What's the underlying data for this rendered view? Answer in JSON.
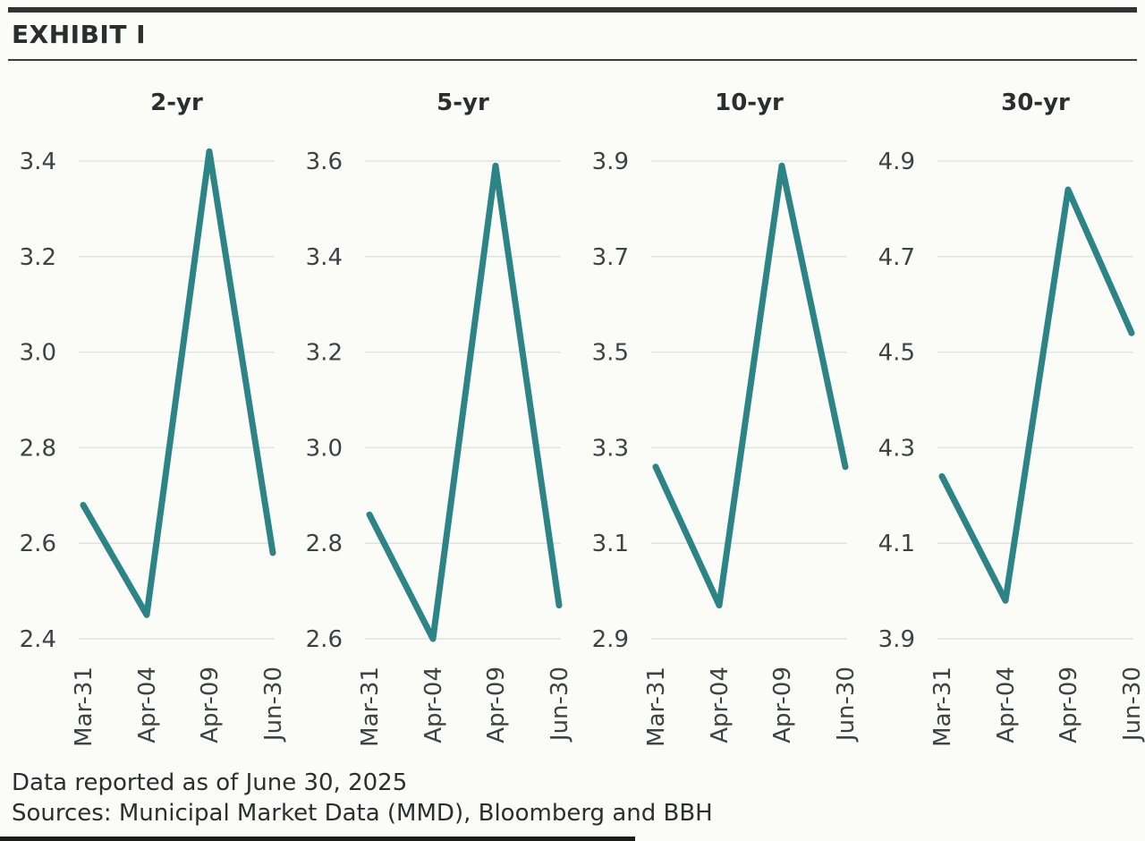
{
  "exhibit": {
    "title": "EXHIBIT I"
  },
  "footer": {
    "as_of": "Data reported as of June 30, 2025",
    "sources": "Sources: Municipal Market Data (MMD), Bloomberg and BBH"
  },
  "colors": {
    "line": "#2d8486",
    "grid": "#e2e2e0",
    "background": "#fbfbf8",
    "rule_dark": "#303234",
    "tick_text": "#3f4245"
  },
  "chart_data": {
    "type": "line",
    "title": "EXHIBIT I",
    "grid": true,
    "legend_position": "none",
    "x_tick_rotation": 90,
    "categories": [
      "Mar-31",
      "Apr-04",
      "Apr-09",
      "Jun-30"
    ],
    "panels": [
      {
        "title": "2-yr",
        "ylim": [
          2.4,
          3.4
        ],
        "yticks": [
          "3.4",
          "3.2",
          "3.0",
          "2.8",
          "2.6",
          "2.4"
        ],
        "values": [
          2.68,
          2.45,
          3.42,
          2.58
        ]
      },
      {
        "title": "5-yr",
        "ylim": [
          2.6,
          3.6
        ],
        "yticks": [
          "3.6",
          "3.4",
          "3.2",
          "3.0",
          "2.8",
          "2.6"
        ],
        "values": [
          2.86,
          2.6,
          3.59,
          2.67
        ]
      },
      {
        "title": "10-yr",
        "ylim": [
          2.9,
          3.9
        ],
        "yticks": [
          "3.9",
          "3.7",
          "3.5",
          "3.3",
          "3.1",
          "2.9"
        ],
        "values": [
          3.26,
          2.97,
          3.89,
          3.26
        ]
      },
      {
        "title": "30-yr",
        "ylim": [
          3.9,
          4.9
        ],
        "yticks": [
          "4.9",
          "4.7",
          "4.5",
          "4.3",
          "4.1",
          "3.9"
        ],
        "values": [
          4.24,
          3.98,
          4.84,
          4.54
        ]
      }
    ]
  }
}
